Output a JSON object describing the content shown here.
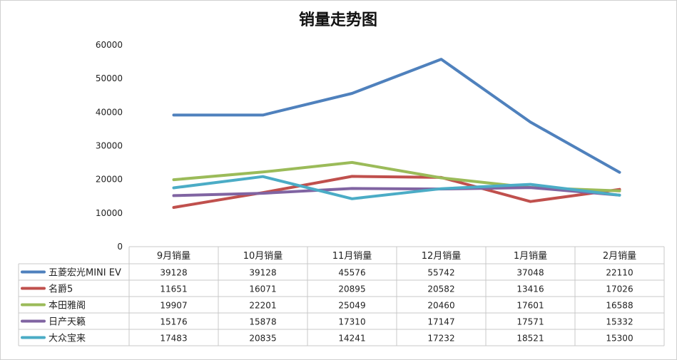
{
  "chart_data": {
    "type": "line",
    "title": "销量走势图",
    "categories": [
      "9月销量",
      "10月销量",
      "11月销量",
      "12月销量",
      "1月销量",
      "2月销量"
    ],
    "ylim": [
      0,
      60000
    ],
    "yticks": [
      0,
      10000,
      20000,
      30000,
      40000,
      50000,
      60000
    ],
    "grid": false,
    "legend": "data-table",
    "series": [
      {
        "name": "五菱宏光MINI EV",
        "color": "#4f81bd",
        "values": [
          39128,
          39128,
          45576,
          55742,
          37048,
          22110
        ]
      },
      {
        "name": "名爵5",
        "color": "#c0504d",
        "values": [
          11651,
          16071,
          20895,
          20582,
          13416,
          17026
        ]
      },
      {
        "name": "本田雅阁",
        "color": "#9bbb59",
        "values": [
          19907,
          22201,
          25049,
          20460,
          17601,
          16588
        ]
      },
      {
        "name": "日产天籁",
        "color": "#8064a2",
        "values": [
          15176,
          15878,
          17310,
          17147,
          17571,
          15332
        ]
      },
      {
        "name": "大众宝来",
        "color": "#4bacc6",
        "values": [
          17483,
          20835,
          14241,
          17232,
          18521,
          15300
        ]
      }
    ]
  }
}
